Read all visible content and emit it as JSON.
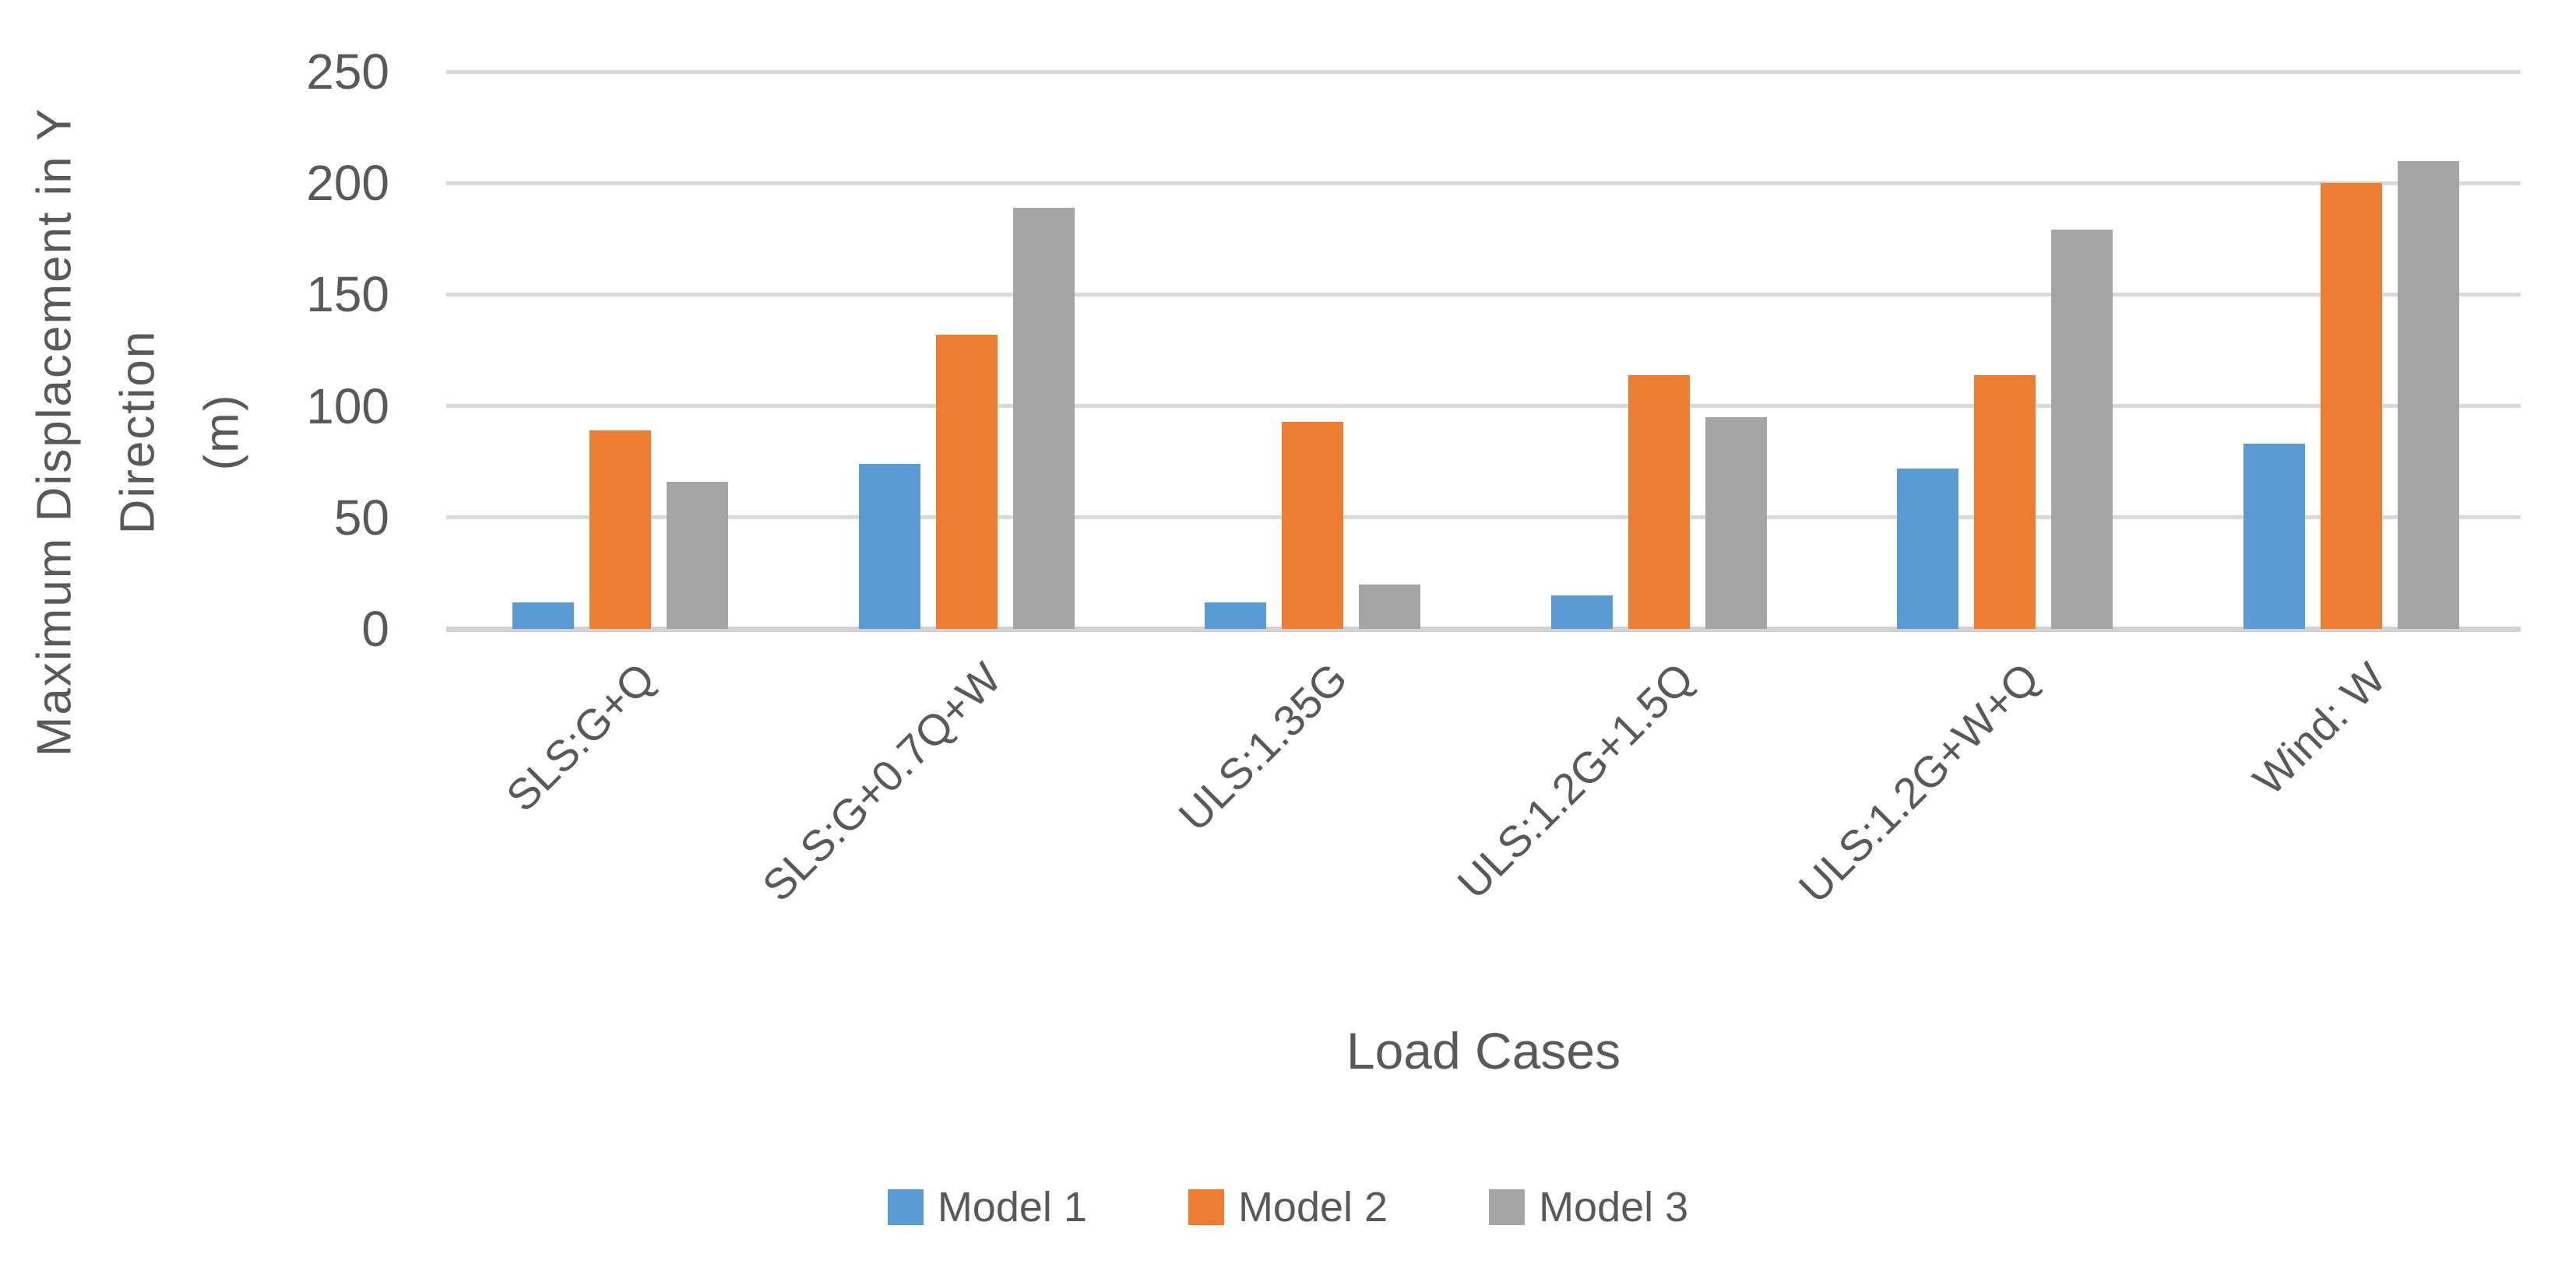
{
  "chart_data": {
    "type": "bar",
    "title": "",
    "categories": [
      "SLS:G+Q",
      "SLS:G+0.7Q+W",
      "ULS:1.35G",
      "ULS:1.2G+1.5Q",
      "ULS:1.2G+W+Q",
      "Wind: W"
    ],
    "series": [
      {
        "name": "Model 1",
        "color": "#5B9BD5",
        "values": [
          12,
          74,
          12,
          15,
          72,
          83
        ]
      },
      {
        "name": "Model 2",
        "color": "#ED7D31",
        "values": [
          89,
          132,
          93,
          114,
          114,
          200
        ]
      },
      {
        "name": "Model 3",
        "color": "#A5A5A5",
        "values": [
          66,
          189,
          20,
          95,
          179,
          210
        ]
      }
    ],
    "xlabel": "Load Cases",
    "ylabel": "Maximum Displacement in Y Direction (m)",
    "ylabel_lines": [
      "Maximum Displacement in Y",
      "Direction",
      "(m)"
    ],
    "ylim": [
      0,
      250
    ],
    "yticks": [
      0,
      50,
      100,
      150,
      200,
      250
    ],
    "grid": true,
    "legend_position": "bottom",
    "bar_orientation": "vertical"
  },
  "colors": {
    "background": "#FFFFFF",
    "text": "#595959",
    "gridline": "#D9D9D9",
    "axis_line": "#D2D2D2",
    "series_blue": "#5B9BD5",
    "series_orange": "#ED7D31",
    "series_gray": "#A5A5A5"
  }
}
